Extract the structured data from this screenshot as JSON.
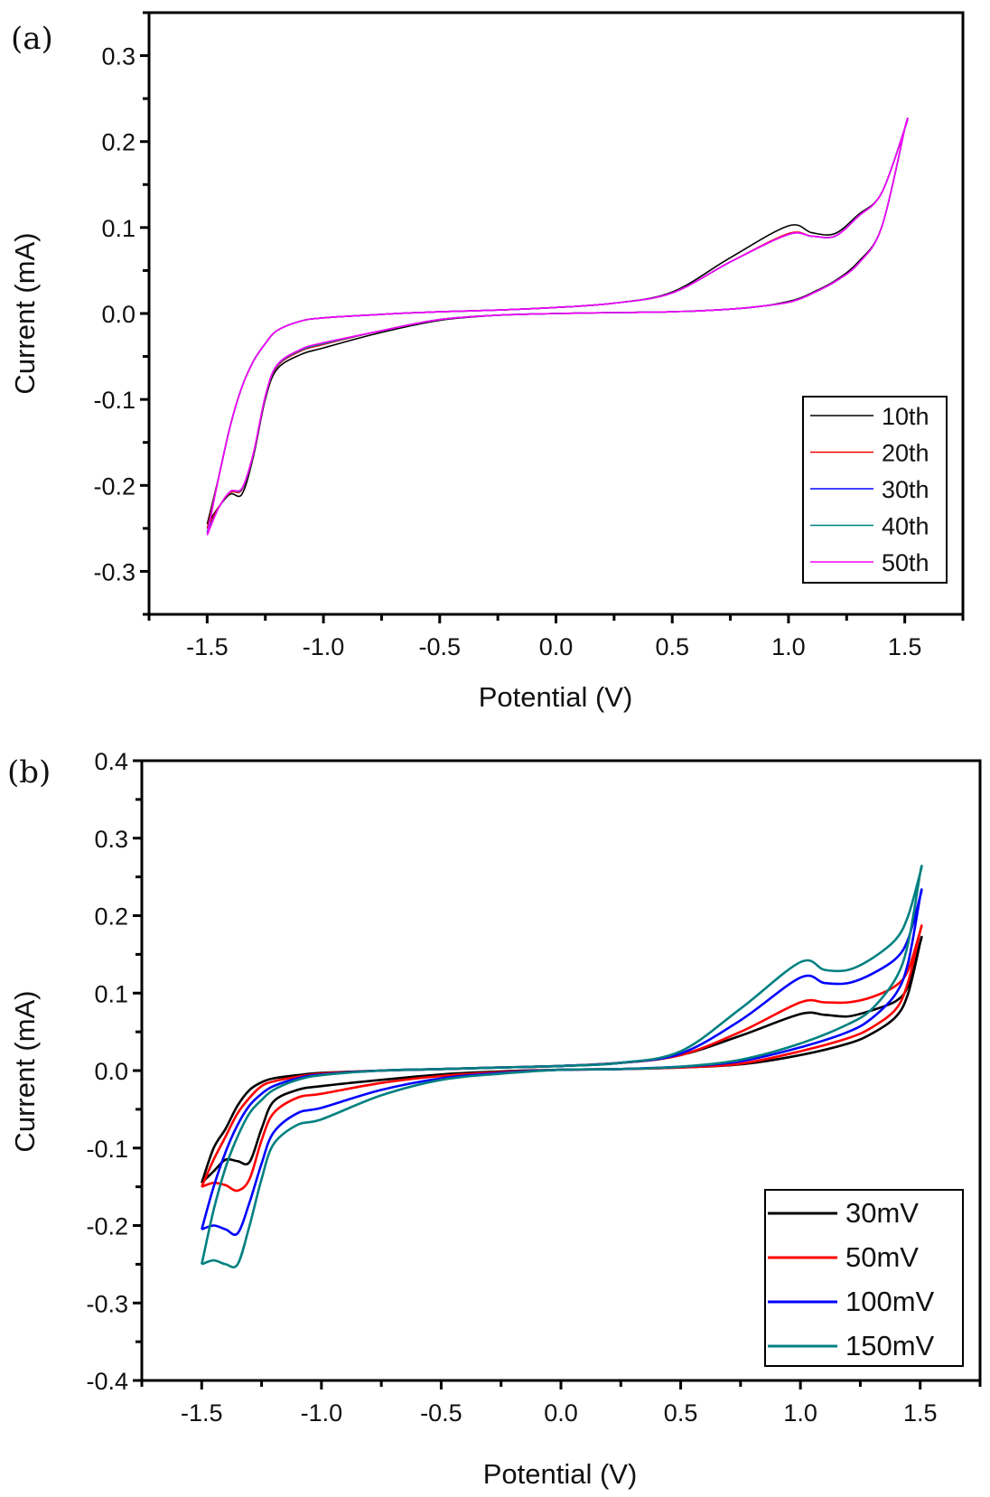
{
  "chart_data": [
    {
      "type": "line",
      "panel_label": "(a)",
      "title": "",
      "xlabel": "Potential (V)",
      "ylabel": "Current (mA)",
      "xlim": [
        -1.75,
        1.75
      ],
      "ylim": [
        -0.35,
        0.35
      ],
      "xticks": [
        -1.5,
        -1.0,
        -0.5,
        0.0,
        0.5,
        1.0,
        1.5
      ],
      "xtick_labels": [
        "-1.5",
        "-1.0",
        "-0.5",
        "0.0",
        "0.5",
        "1.0",
        "1.5"
      ],
      "yticks": [
        -0.3,
        -0.2,
        -0.1,
        0.0,
        0.1,
        0.2,
        0.3
      ],
      "ytick_labels": [
        "-0.3",
        "-0.2",
        "-0.1",
        "0.0",
        "0.1",
        "0.2",
        "0.3"
      ],
      "grid": false,
      "legend_position": "bottom-right",
      "series": [
        {
          "name": "10th",
          "color": "#000000",
          "x": [
            -1.5,
            -1.45,
            -1.4,
            -1.35,
            -1.3,
            -1.25,
            -1.2,
            -1.1,
            -1.0,
            -0.75,
            -0.5,
            -0.25,
            0.0,
            0.25,
            0.5,
            0.75,
            0.9,
            1.0,
            1.05,
            1.1,
            1.2,
            1.3,
            1.4,
            1.5,
            1.5,
            1.4,
            1.3,
            1.2,
            1.1,
            1.0,
            0.75,
            0.5,
            0.25,
            0.0,
            -0.25,
            -0.5,
            -0.75,
            -1.0,
            -1.1,
            -1.2,
            -1.25,
            -1.3,
            -1.35,
            -1.4,
            -1.45,
            -1.5
          ],
          "y": [
            -0.245,
            -0.225,
            -0.21,
            -0.21,
            -0.165,
            -0.1,
            -0.065,
            -0.048,
            -0.04,
            -0.022,
            -0.008,
            -0.002,
            0.0,
            0.001,
            0.002,
            0.005,
            0.009,
            0.014,
            0.018,
            0.024,
            0.038,
            0.06,
            0.1,
            0.215,
            0.215,
            0.14,
            0.115,
            0.093,
            0.094,
            0.102,
            0.065,
            0.025,
            0.012,
            0.007,
            0.004,
            0.002,
            -0.001,
            -0.005,
            -0.009,
            -0.02,
            -0.035,
            -0.055,
            -0.085,
            -0.13,
            -0.19,
            -0.245
          ]
        },
        {
          "name": "20th",
          "color": "#ff0000",
          "x": [
            -1.5,
            -1.45,
            -1.4,
            -1.35,
            -1.3,
            -1.25,
            -1.2,
            -1.1,
            -1.0,
            -0.75,
            -0.5,
            -0.25,
            0.0,
            0.25,
            0.5,
            0.75,
            0.9,
            1.0,
            1.05,
            1.1,
            1.2,
            1.3,
            1.4,
            1.5,
            1.5,
            1.4,
            1.3,
            1.2,
            1.1,
            1.0,
            0.75,
            0.5,
            0.25,
            0.0,
            -0.25,
            -0.5,
            -0.75,
            -1.0,
            -1.1,
            -1.2,
            -1.25,
            -1.3,
            -1.35,
            -1.4,
            -1.45,
            -1.5
          ],
          "y": [
            -0.25,
            -0.225,
            -0.208,
            -0.205,
            -0.163,
            -0.098,
            -0.062,
            -0.044,
            -0.036,
            -0.02,
            -0.007,
            -0.002,
            0.0,
            0.001,
            0.002,
            0.005,
            0.009,
            0.013,
            0.017,
            0.023,
            0.037,
            0.058,
            0.1,
            0.215,
            0.215,
            0.14,
            0.113,
            0.09,
            0.09,
            0.093,
            0.06,
            0.024,
            0.012,
            0.007,
            0.004,
            0.002,
            -0.001,
            -0.005,
            -0.009,
            -0.02,
            -0.035,
            -0.055,
            -0.085,
            -0.13,
            -0.19,
            -0.25
          ]
        },
        {
          "name": "30th",
          "color": "#0000ff",
          "x": [
            -1.5,
            -1.45,
            -1.4,
            -1.35,
            -1.3,
            -1.25,
            -1.2,
            -1.1,
            -1.0,
            -0.75,
            -0.5,
            -0.25,
            0.0,
            0.25,
            0.5,
            0.75,
            0.9,
            1.0,
            1.05,
            1.1,
            1.2,
            1.3,
            1.4,
            1.5,
            1.5,
            1.4,
            1.3,
            1.2,
            1.1,
            1.0,
            0.75,
            0.5,
            0.25,
            0.0,
            -0.25,
            -0.5,
            -0.75,
            -1.0,
            -1.1,
            -1.2,
            -1.25,
            -1.3,
            -1.35,
            -1.4,
            -1.45,
            -1.5
          ],
          "y": [
            -0.255,
            -0.226,
            -0.207,
            -0.204,
            -0.162,
            -0.097,
            -0.061,
            -0.043,
            -0.035,
            -0.02,
            -0.007,
            -0.002,
            0.0,
            0.001,
            0.002,
            0.005,
            0.009,
            0.013,
            0.017,
            0.023,
            0.037,
            0.058,
            0.1,
            0.215,
            0.215,
            0.14,
            0.113,
            0.09,
            0.09,
            0.092,
            0.06,
            0.024,
            0.012,
            0.007,
            0.004,
            0.002,
            -0.001,
            -0.005,
            -0.009,
            -0.02,
            -0.035,
            -0.055,
            -0.085,
            -0.13,
            -0.19,
            -0.255
          ]
        },
        {
          "name": "40th",
          "color": "#008080",
          "x": [
            -1.5,
            -1.45,
            -1.4,
            -1.35,
            -1.3,
            -1.25,
            -1.2,
            -1.1,
            -1.0,
            -0.75,
            -0.5,
            -0.25,
            0.0,
            0.25,
            0.5,
            0.75,
            0.9,
            1.0,
            1.05,
            1.1,
            1.2,
            1.3,
            1.4,
            1.5,
            1.5,
            1.4,
            1.3,
            1.2,
            1.1,
            1.0,
            0.75,
            0.5,
            0.25,
            0.0,
            -0.25,
            -0.5,
            -0.75,
            -1.0,
            -1.1,
            -1.2,
            -1.25,
            -1.3,
            -1.35,
            -1.4,
            -1.45,
            -1.5
          ],
          "y": [
            -0.256,
            -0.226,
            -0.207,
            -0.204,
            -0.162,
            -0.097,
            -0.061,
            -0.043,
            -0.035,
            -0.02,
            -0.007,
            -0.002,
            0.0,
            0.001,
            0.002,
            0.005,
            0.009,
            0.013,
            0.017,
            0.023,
            0.037,
            0.058,
            0.1,
            0.215,
            0.215,
            0.14,
            0.113,
            0.09,
            0.09,
            0.092,
            0.06,
            0.024,
            0.012,
            0.007,
            0.004,
            0.002,
            -0.001,
            -0.005,
            -0.009,
            -0.02,
            -0.035,
            -0.055,
            -0.085,
            -0.13,
            -0.19,
            -0.256
          ]
        },
        {
          "name": "50th",
          "color": "#ff00ff",
          "x": [
            -1.5,
            -1.45,
            -1.4,
            -1.35,
            -1.3,
            -1.25,
            -1.2,
            -1.1,
            -1.0,
            -0.75,
            -0.5,
            -0.25,
            0.0,
            0.25,
            0.5,
            0.75,
            0.9,
            1.0,
            1.05,
            1.1,
            1.2,
            1.3,
            1.4,
            1.5,
            1.5,
            1.4,
            1.3,
            1.2,
            1.1,
            1.0,
            0.75,
            0.5,
            0.25,
            0.0,
            -0.25,
            -0.5,
            -0.75,
            -1.0,
            -1.1,
            -1.2,
            -1.25,
            -1.3,
            -1.35,
            -1.4,
            -1.45,
            -1.5
          ],
          "y": [
            -0.258,
            -0.226,
            -0.207,
            -0.203,
            -0.161,
            -0.096,
            -0.06,
            -0.042,
            -0.034,
            -0.02,
            -0.007,
            -0.002,
            0.0,
            0.001,
            0.002,
            0.005,
            0.009,
            0.013,
            0.017,
            0.023,
            0.037,
            0.058,
            0.1,
            0.215,
            0.215,
            0.14,
            0.113,
            0.09,
            0.09,
            0.092,
            0.06,
            0.024,
            0.012,
            0.007,
            0.004,
            0.002,
            -0.001,
            -0.005,
            -0.009,
            -0.02,
            -0.035,
            -0.055,
            -0.085,
            -0.13,
            -0.19,
            -0.258
          ]
        }
      ]
    },
    {
      "type": "line",
      "panel_label": "(b)",
      "title": "",
      "xlabel": "Potential (V)",
      "ylabel": "Current (mA)",
      "xlim": [
        -1.75,
        1.75
      ],
      "ylim": [
        -0.4,
        0.4
      ],
      "xticks": [
        -1.5,
        -1.0,
        -0.5,
        0.0,
        0.5,
        1.0,
        1.5
      ],
      "xtick_labels": [
        "-1.5",
        "-1.0",
        "-0.5",
        "0.0",
        "0.5",
        "1.0",
        "1.5"
      ],
      "yticks": [
        -0.4,
        -0.3,
        -0.2,
        -0.1,
        0.0,
        0.1,
        0.2,
        0.3,
        0.4
      ],
      "ytick_labels": [
        "-0.4",
        "-0.3",
        "-0.2",
        "-0.1",
        "0.0",
        "0.1",
        "0.2",
        "0.3",
        "0.4"
      ],
      "grid": false,
      "legend_position": "bottom-right",
      "series": [
        {
          "name": "30mV",
          "color": "#000000",
          "x": [
            -1.5,
            -1.45,
            -1.4,
            -1.35,
            -1.3,
            -1.25,
            -1.2,
            -1.1,
            -1.0,
            -0.75,
            -0.5,
            -0.25,
            0.0,
            0.25,
            0.5,
            0.75,
            1.0,
            1.2,
            1.3,
            1.4,
            1.45,
            1.5,
            1.5,
            1.45,
            1.4,
            1.3,
            1.2,
            1.1,
            1.0,
            0.75,
            0.5,
            0.25,
            0.0,
            -0.25,
            -0.5,
            -0.75,
            -1.0,
            -1.1,
            -1.2,
            -1.25,
            -1.3,
            -1.35,
            -1.4,
            -1.45,
            -1.5
          ],
          "y": [
            -0.145,
            -0.13,
            -0.115,
            -0.117,
            -0.118,
            -0.075,
            -0.04,
            -0.025,
            -0.02,
            -0.012,
            -0.005,
            -0.001,
            0.001,
            0.002,
            0.004,
            0.008,
            0.02,
            0.035,
            0.048,
            0.07,
            0.1,
            0.165,
            0.165,
            0.11,
            0.09,
            0.078,
            0.07,
            0.072,
            0.073,
            0.045,
            0.02,
            0.01,
            0.006,
            0.004,
            0.002,
            0.0,
            -0.003,
            -0.006,
            -0.01,
            -0.015,
            -0.025,
            -0.045,
            -0.075,
            -0.1,
            -0.145
          ]
        },
        {
          "name": "50mV",
          "color": "#ff0000",
          "x": [
            -1.5,
            -1.45,
            -1.4,
            -1.35,
            -1.3,
            -1.25,
            -1.2,
            -1.1,
            -1.0,
            -0.75,
            -0.5,
            -0.25,
            0.0,
            0.25,
            0.5,
            0.75,
            1.0,
            1.2,
            1.3,
            1.4,
            1.45,
            1.5,
            1.5,
            1.45,
            1.4,
            1.3,
            1.2,
            1.1,
            1.0,
            0.75,
            0.5,
            0.25,
            0.0,
            -0.25,
            -0.5,
            -0.75,
            -1.0,
            -1.1,
            -1.2,
            -1.25,
            -1.3,
            -1.35,
            -1.4,
            -1.45,
            -1.5
          ],
          "y": [
            -0.15,
            -0.145,
            -0.148,
            -0.155,
            -0.14,
            -0.09,
            -0.055,
            -0.035,
            -0.03,
            -0.016,
            -0.007,
            -0.002,
            0.001,
            0.002,
            0.004,
            0.009,
            0.025,
            0.042,
            0.056,
            0.08,
            0.115,
            0.18,
            0.18,
            0.13,
            0.11,
            0.095,
            0.088,
            0.088,
            0.088,
            0.05,
            0.02,
            0.01,
            0.006,
            0.004,
            0.002,
            0.0,
            -0.004,
            -0.008,
            -0.014,
            -0.02,
            -0.035,
            -0.055,
            -0.085,
            -0.115,
            -0.15
          ]
        },
        {
          "name": "100mV",
          "color": "#0000ff",
          "x": [
            -1.5,
            -1.45,
            -1.4,
            -1.35,
            -1.3,
            -1.25,
            -1.2,
            -1.1,
            -1.0,
            -0.75,
            -0.5,
            -0.25,
            0.0,
            0.25,
            0.5,
            0.75,
            1.0,
            1.2,
            1.3,
            1.4,
            1.45,
            1.5,
            1.5,
            1.45,
            1.4,
            1.3,
            1.2,
            1.1,
            1.0,
            0.75,
            0.5,
            0.25,
            0.0,
            -0.25,
            -0.5,
            -0.75,
            -1.0,
            -1.1,
            -1.2,
            -1.25,
            -1.3,
            -1.35,
            -1.4,
            -1.45,
            -1.5
          ],
          "y": [
            -0.205,
            -0.2,
            -0.205,
            -0.21,
            -0.17,
            -0.12,
            -0.08,
            -0.055,
            -0.048,
            -0.025,
            -0.01,
            -0.003,
            0.001,
            0.002,
            0.005,
            0.012,
            0.03,
            0.05,
            0.068,
            0.1,
            0.14,
            0.225,
            0.225,
            0.17,
            0.145,
            0.125,
            0.113,
            0.113,
            0.12,
            0.065,
            0.022,
            0.01,
            0.006,
            0.004,
            0.002,
            0.0,
            -0.005,
            -0.01,
            -0.02,
            -0.03,
            -0.045,
            -0.07,
            -0.105,
            -0.15,
            -0.205
          ]
        },
        {
          "name": "150mV",
          "color": "#008080",
          "x": [
            -1.5,
            -1.45,
            -1.4,
            -1.35,
            -1.3,
            -1.25,
            -1.2,
            -1.1,
            -1.0,
            -0.75,
            -0.5,
            -0.25,
            0.0,
            0.25,
            0.5,
            0.75,
            1.0,
            1.2,
            1.3,
            1.4,
            1.45,
            1.5,
            1.5,
            1.45,
            1.4,
            1.3,
            1.2,
            1.1,
            1.0,
            0.75,
            0.5,
            0.25,
            0.0,
            -0.25,
            -0.5,
            -0.75,
            -1.0,
            -1.1,
            -1.2,
            -1.25,
            -1.3,
            -1.35,
            -1.4,
            -1.45,
            -1.5
          ],
          "y": [
            -0.25,
            -0.245,
            -0.25,
            -0.25,
            -0.2,
            -0.14,
            -0.095,
            -0.07,
            -0.063,
            -0.032,
            -0.012,
            -0.004,
            0.001,
            0.002,
            0.005,
            0.014,
            0.035,
            0.06,
            0.08,
            0.12,
            0.165,
            0.255,
            0.255,
            0.2,
            0.17,
            0.145,
            0.13,
            0.13,
            0.14,
            0.08,
            0.025,
            0.01,
            0.006,
            0.004,
            0.002,
            0.0,
            -0.006,
            -0.012,
            -0.025,
            -0.038,
            -0.055,
            -0.085,
            -0.125,
            -0.18,
            -0.25
          ]
        }
      ]
    }
  ]
}
